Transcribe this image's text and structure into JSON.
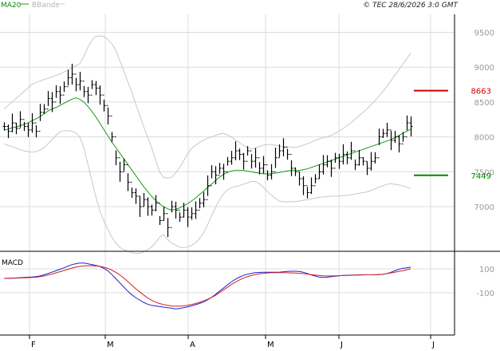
{
  "header": {
    "legend_ma": "MA20",
    "legend_bands": "BBands",
    "copyright": "© TEC 28/6/2026 3:0 GMT"
  },
  "colors": {
    "background": "#ffffff",
    "grid": "#dcdcdc",
    "price_bar": "#000000",
    "ma20": "#1a9a1a",
    "bbands": "#c8c8c8",
    "resistance": "#cc0000",
    "support": "#008800",
    "macd_line": "#2020d0",
    "macd_signal": "#d02020",
    "axis_text": "#9a9a9a"
  },
  "chart_data": [
    {
      "type": "ohlc",
      "title": "",
      "panel": "price",
      "legend": [
        "MA20",
        "BBands"
      ],
      "legend_placement": "top-left",
      "grid": true,
      "y_ticks": [
        7000,
        7500,
        8000,
        8500,
        9000,
        9500
      ],
      "y_tick_labels": [
        "7000",
        "7500",
        "8000",
        "8500",
        "9000",
        "9500"
      ],
      "ylim": [
        6600,
        9800
      ],
      "x_ticks": [
        "F",
        "M",
        "A",
        "M",
        "J",
        "J"
      ],
      "levels": [
        {
          "name": "resistance",
          "value": 8663,
          "label": "8663"
        },
        {
          "name": "support",
          "value": 7449,
          "label": "7449"
        }
      ],
      "close": [
        8150,
        8080,
        8200,
        8120,
        8250,
        8150,
        8100,
        8200,
        8080,
        8350,
        8400,
        8550,
        8500,
        8650,
        8600,
        8720,
        8850,
        8900,
        8750,
        8800,
        8650,
        8600,
        8750,
        8700,
        8600,
        8450,
        8300,
        8000,
        7700,
        7500,
        7600,
        7350,
        7200,
        7150,
        7000,
        7100,
        7000,
        6950,
        7050,
        6800,
        6900,
        6700,
        7000,
        6950,
        6850,
        6950,
        6850,
        6900,
        6950,
        7050,
        7100,
        7300,
        7500,
        7450,
        7550,
        7500,
        7650,
        7700,
        7800,
        7750,
        7650,
        7800,
        7650,
        7700,
        7550,
        7600,
        7450,
        7500,
        7700,
        7800,
        7850,
        7750,
        7550,
        7500,
        7400,
        7300,
        7200,
        7300,
        7400,
        7500,
        7600,
        7650,
        7550,
        7700,
        7650,
        7750,
        7700,
        7800,
        7600,
        7700,
        7650,
        7550,
        7650,
        7700,
        8000,
        8050,
        8100,
        7950,
        8000,
        7900,
        8000,
        8200,
        8150
      ],
      "ma20": [
        8100,
        8110,
        8130,
        8140,
        8160,
        8180,
        8200,
        8230,
        8260,
        8290,
        8330,
        8370,
        8400,
        8420,
        8450,
        8480,
        8510,
        8540,
        8560,
        8540,
        8500,
        8440,
        8370,
        8290,
        8200,
        8110,
        8020,
        7930,
        7850,
        7770,
        7690,
        7610,
        7530,
        7450,
        7370,
        7290,
        7220,
        7150,
        7090,
        7040,
        7000,
        6970,
        6950,
        6960,
        6980,
        7010,
        7040,
        7080,
        7120,
        7170,
        7220,
        7270,
        7320,
        7370,
        7420,
        7460,
        7490,
        7510,
        7520,
        7520,
        7520,
        7510,
        7500,
        7490,
        7480,
        7470,
        7470,
        7470,
        7480,
        7490,
        7500,
        7510,
        7520,
        7520,
        7520,
        7530,
        7540,
        7560,
        7580,
        7600,
        7620,
        7640,
        7660,
        7680,
        7700,
        7720,
        7740,
        7760,
        7780,
        7800,
        7820,
        7840,
        7860,
        7880,
        7900,
        7920,
        7940,
        7960,
        7990,
        8020,
        8050,
        8080,
        8110
      ],
      "bb_upper": [
        8400,
        8450,
        8500,
        8550,
        8600,
        8650,
        8700,
        8750,
        8780,
        8800,
        8820,
        8840,
        8860,
        8880,
        8900,
        8930,
        8960,
        8990,
        9020,
        9050,
        9150,
        9280,
        9380,
        9440,
        9450,
        9440,
        9400,
        9340,
        9250,
        9100,
        8950,
        8800,
        8650,
        8480,
        8320,
        8150,
        8000,
        7850,
        7680,
        7500,
        7420,
        7410,
        7420,
        7480,
        7560,
        7650,
        7750,
        7830,
        7880,
        7920,
        7950,
        7980,
        8000,
        8020,
        8040,
        8050,
        8030,
        8000,
        7960,
        7920,
        7880,
        7850,
        7830,
        7840,
        7860,
        7880,
        7890,
        7890,
        7880,
        7870,
        7860,
        7860,
        7850,
        7850,
        7860,
        7880,
        7900,
        7920,
        7950,
        7970,
        7990,
        8000,
        8020,
        8050,
        8080,
        8120,
        8160,
        8200,
        8250,
        8300,
        8350,
        8400,
        8460,
        8520,
        8580,
        8650,
        8720,
        8800,
        8880,
        8960,
        9040,
        9120,
        9200
      ],
      "bb_lower": [
        7900,
        7880,
        7860,
        7840,
        7820,
        7800,
        7790,
        7780,
        7790,
        7810,
        7840,
        7900,
        7960,
        8020,
        8070,
        8090,
        8090,
        8080,
        8060,
        8000,
        7850,
        7620,
        7380,
        7150,
        6950,
        6800,
        6680,
        6570,
        6480,
        6420,
        6380,
        6360,
        6340,
        6330,
        6330,
        6350,
        6380,
        6420,
        6480,
        6560,
        6600,
        6530,
        6480,
        6450,
        6420,
        6410,
        6420,
        6440,
        6480,
        6540,
        6620,
        6730,
        6860,
        6980,
        7090,
        7180,
        7240,
        7270,
        7290,
        7300,
        7320,
        7340,
        7360,
        7360,
        7330,
        7280,
        7220,
        7170,
        7120,
        7080,
        7070,
        7070,
        7070,
        7070,
        7080,
        7090,
        7100,
        7110,
        7120,
        7130,
        7140,
        7140,
        7150,
        7150,
        7150,
        7160,
        7160,
        7170,
        7180,
        7190,
        7200,
        7210,
        7230,
        7250,
        7280,
        7300,
        7320,
        7330,
        7320,
        7310,
        7300,
        7280,
        7260
      ]
    },
    {
      "type": "line",
      "title": "MACD",
      "panel": "macd",
      "grid": true,
      "y_ticks": [
        100,
        -100
      ],
      "y_tick_labels": [
        "100",
        "-100"
      ],
      "ylim": [
        -250,
        130
      ],
      "series": [
        {
          "name": "",
          "color": "#2020d0",
          "values": [
            20,
            21,
            22,
            24,
            26,
            28,
            30,
            32,
            35,
            40,
            50,
            60,
            72,
            84,
            96,
            108,
            122,
            135,
            143,
            148,
            148,
            143,
            136,
            129,
            120,
            105,
            85,
            55,
            20,
            -15,
            -50,
            -85,
            -115,
            -140,
            -160,
            -180,
            -195,
            -205,
            -210,
            -215,
            -220,
            -225,
            -228,
            -235,
            -232,
            -225,
            -218,
            -210,
            -200,
            -190,
            -178,
            -160,
            -140,
            -115,
            -88,
            -62,
            -35,
            -10,
            12,
            30,
            45,
            55,
            62,
            68,
            70,
            72,
            72,
            72,
            72,
            72,
            75,
            78,
            80,
            80,
            78,
            72,
            62,
            50,
            40,
            32,
            28,
            30,
            34,
            38,
            42,
            45,
            46,
            47,
            48,
            49,
            50,
            50,
            50,
            51,
            52,
            54,
            60,
            70,
            84,
            96,
            104,
            108,
            114
          ]
        },
        {
          "name": "",
          "color": "#d02020",
          "values": [
            20,
            21,
            22,
            23,
            24,
            25,
            26,
            28,
            30,
            34,
            40,
            48,
            56,
            66,
            76,
            86,
            96,
            106,
            114,
            120,
            124,
            126,
            126,
            125,
            121,
            114,
            104,
            90,
            72,
            50,
            24,
            -5,
            -35,
            -65,
            -92,
            -118,
            -142,
            -162,
            -178,
            -190,
            -198,
            -205,
            -210,
            -212,
            -212,
            -210,
            -205,
            -198,
            -190,
            -180,
            -168,
            -155,
            -140,
            -122,
            -100,
            -78,
            -55,
            -32,
            -12,
            6,
            22,
            34,
            44,
            52,
            58,
            62,
            65,
            67,
            68,
            68,
            68,
            67,
            66,
            65,
            63,
            60,
            56,
            52,
            48,
            45,
            42,
            41,
            41,
            42,
            43,
            44,
            45,
            46,
            47,
            48,
            49,
            50,
            50,
            50,
            52,
            55,
            60,
            66,
            72,
            78,
            84,
            92,
            100
          ]
        }
      ]
    }
  ]
}
